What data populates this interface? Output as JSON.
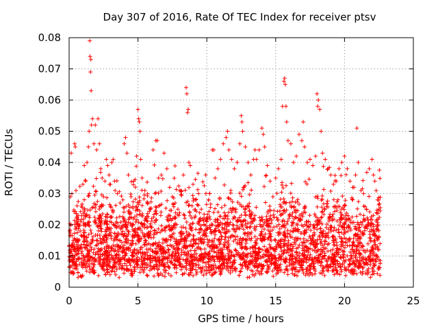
{
  "chart_data": {
    "type": "scatter",
    "title": "Day 307 of 2016, Rate Of TEC Index for receiver ptsv",
    "xlabel": "GPS time / hours",
    "ylabel": "ROTI / TECUs",
    "xlim": [
      0,
      25
    ],
    "ylim": [
      0,
      0.08
    ],
    "xticks": [
      0,
      5,
      10,
      15,
      20,
      25
    ],
    "xtick_labels": [
      "0",
      "5",
      "10",
      "15",
      "20",
      "25"
    ],
    "yticks": [
      0,
      0.01,
      0.02,
      0.03,
      0.04,
      0.05,
      0.06,
      0.07,
      0.08
    ],
    "ytick_labels": [
      "0",
      "0.01",
      "0.02",
      "0.03",
      "0.04",
      "0.05",
      "0.06",
      "0.07",
      "0.08"
    ],
    "grid": true,
    "marker": "+",
    "color": "#ff0000",
    "series": [
      {
        "name": "ROTI",
        "points": [
          [
            0.05,
            0.018
          ],
          [
            0.1,
            0.029
          ],
          [
            0.15,
            0.043
          ],
          [
            0.2,
            0.03
          ],
          [
            0.3,
            0.015
          ],
          [
            0.4,
            0.046
          ],
          [
            0.45,
            0.045
          ],
          [
            0.5,
            0.031
          ],
          [
            0.6,
            0.022
          ],
          [
            0.7,
            0.02
          ],
          [
            0.8,
            0.018
          ],
          [
            0.9,
            0.026
          ],
          [
            1.0,
            0.033
          ],
          [
            1.1,
            0.039
          ],
          [
            1.2,
            0.034
          ],
          [
            1.3,
            0.04
          ],
          [
            1.4,
            0.045
          ],
          [
            1.45,
            0.05
          ],
          [
            1.5,
            0.079
          ],
          [
            1.52,
            0.074
          ],
          [
            1.55,
            0.069
          ],
          [
            1.6,
            0.063
          ],
          [
            1.58,
            0.073
          ],
          [
            1.62,
            0.052
          ],
          [
            1.7,
            0.054
          ],
          [
            1.8,
            0.046
          ],
          [
            1.9,
            0.052
          ],
          [
            2.0,
            0.044
          ],
          [
            2.1,
            0.054
          ],
          [
            2.2,
            0.046
          ],
          [
            2.3,
            0.038
          ],
          [
            2.4,
            0.035
          ],
          [
            2.5,
            0.029
          ],
          [
            2.6,
            0.034
          ],
          [
            2.7,
            0.041
          ],
          [
            2.8,
            0.039
          ],
          [
            2.9,
            0.036
          ],
          [
            3.0,
            0.033
          ],
          [
            3.1,
            0.04
          ],
          [
            3.2,
            0.041
          ],
          [
            3.3,
            0.034
          ],
          [
            3.5,
            0.03
          ],
          [
            3.7,
            0.027
          ],
          [
            3.9,
            0.028
          ],
          [
            4.0,
            0.046
          ],
          [
            4.1,
            0.048
          ],
          [
            4.2,
            0.043
          ],
          [
            4.3,
            0.036
          ],
          [
            4.5,
            0.029
          ],
          [
            4.7,
            0.034
          ],
          [
            4.9,
            0.042
          ],
          [
            5.0,
            0.057
          ],
          [
            5.05,
            0.054
          ],
          [
            5.1,
            0.053
          ],
          [
            5.15,
            0.05
          ],
          [
            5.2,
            0.041
          ],
          [
            5.3,
            0.035
          ],
          [
            5.5,
            0.031
          ],
          [
            5.7,
            0.027
          ],
          [
            5.9,
            0.025
          ],
          [
            6.0,
            0.022
          ],
          [
            6.1,
            0.044
          ],
          [
            6.3,
            0.047
          ],
          [
            6.4,
            0.047
          ],
          [
            6.5,
            0.035
          ],
          [
            6.7,
            0.036
          ],
          [
            6.9,
            0.043
          ],
          [
            7.1,
            0.038
          ],
          [
            7.3,
            0.032
          ],
          [
            7.5,
            0.029
          ],
          [
            7.7,
            0.027
          ],
          [
            7.9,
            0.025
          ],
          [
            8.1,
            0.031
          ],
          [
            8.3,
            0.036
          ],
          [
            8.5,
            0.064
          ],
          [
            8.55,
            0.062
          ],
          [
            8.6,
            0.056
          ],
          [
            8.65,
            0.057
          ],
          [
            8.7,
            0.04
          ],
          [
            8.8,
            0.039
          ],
          [
            9.0,
            0.033
          ],
          [
            9.2,
            0.028
          ],
          [
            9.4,
            0.03
          ],
          [
            9.6,
            0.025
          ],
          [
            9.8,
            0.02
          ],
          [
            10.0,
            0.021
          ],
          [
            10.2,
            0.03
          ],
          [
            10.4,
            0.044
          ],
          [
            10.5,
            0.044
          ],
          [
            10.6,
            0.035
          ],
          [
            10.8,
            0.038
          ],
          [
            11.0,
            0.041
          ],
          [
            11.2,
            0.046
          ],
          [
            11.4,
            0.048
          ],
          [
            11.5,
            0.05
          ],
          [
            11.6,
            0.044
          ],
          [
            11.8,
            0.041
          ],
          [
            12.0,
            0.038
          ],
          [
            12.2,
            0.04
          ],
          [
            12.4,
            0.046
          ],
          [
            12.5,
            0.055
          ],
          [
            12.55,
            0.053
          ],
          [
            12.6,
            0.05
          ],
          [
            12.8,
            0.045
          ],
          [
            13.0,
            0.04
          ],
          [
            13.2,
            0.036
          ],
          [
            13.4,
            0.041
          ],
          [
            13.5,
            0.044
          ],
          [
            13.6,
            0.041
          ],
          [
            13.8,
            0.044
          ],
          [
            14.0,
            0.051
          ],
          [
            14.1,
            0.049
          ],
          [
            14.2,
            0.045
          ],
          [
            14.4,
            0.039
          ],
          [
            14.6,
            0.034
          ],
          [
            14.8,
            0.029
          ],
          [
            15.0,
            0.035
          ],
          [
            15.2,
            0.038
          ],
          [
            15.4,
            0.041
          ],
          [
            15.5,
            0.058
          ],
          [
            15.6,
            0.066
          ],
          [
            15.65,
            0.067
          ],
          [
            15.7,
            0.065
          ],
          [
            15.75,
            0.058
          ],
          [
            15.8,
            0.053
          ],
          [
            15.9,
            0.047
          ],
          [
            16.1,
            0.046
          ],
          [
            16.3,
            0.04
          ],
          [
            16.5,
            0.042
          ],
          [
            16.7,
            0.049
          ],
          [
            16.9,
            0.047
          ],
          [
            17.0,
            0.053
          ],
          [
            17.1,
            0.045
          ],
          [
            17.3,
            0.04
          ],
          [
            17.5,
            0.041
          ],
          [
            17.7,
            0.039
          ],
          [
            17.9,
            0.042
          ],
          [
            18.0,
            0.062
          ],
          [
            18.05,
            0.058
          ],
          [
            18.1,
            0.06
          ],
          [
            18.2,
            0.057
          ],
          [
            18.3,
            0.05
          ],
          [
            18.4,
            0.043
          ],
          [
            18.6,
            0.041
          ],
          [
            18.8,
            0.038
          ],
          [
            19.0,
            0.036
          ],
          [
            19.2,
            0.033
          ],
          [
            19.4,
            0.034
          ],
          [
            19.6,
            0.038
          ],
          [
            19.8,
            0.04
          ],
          [
            20.0,
            0.042
          ],
          [
            20.2,
            0.038
          ],
          [
            20.4,
            0.034
          ],
          [
            20.6,
            0.032
          ],
          [
            20.8,
            0.036
          ],
          [
            20.9,
            0.051
          ],
          [
            21.0,
            0.04
          ],
          [
            21.2,
            0.031
          ],
          [
            21.4,
            0.026
          ],
          [
            21.6,
            0.025
          ],
          [
            21.8,
            0.038
          ],
          [
            22.0,
            0.041
          ],
          [
            22.1,
            0.036
          ],
          [
            22.2,
            0.034
          ],
          [
            22.3,
            0.031
          ],
          [
            22.4,
            0.028
          ],
          [
            22.5,
            0.025
          ]
        ]
      }
    ],
    "dense_band": {
      "x_range": [
        0,
        22.6
      ],
      "typical_range": [
        0.003,
        0.025
      ],
      "note": "Very dense cluster of points, mostly between 0.005 and 0.02 across the whole day"
    }
  }
}
